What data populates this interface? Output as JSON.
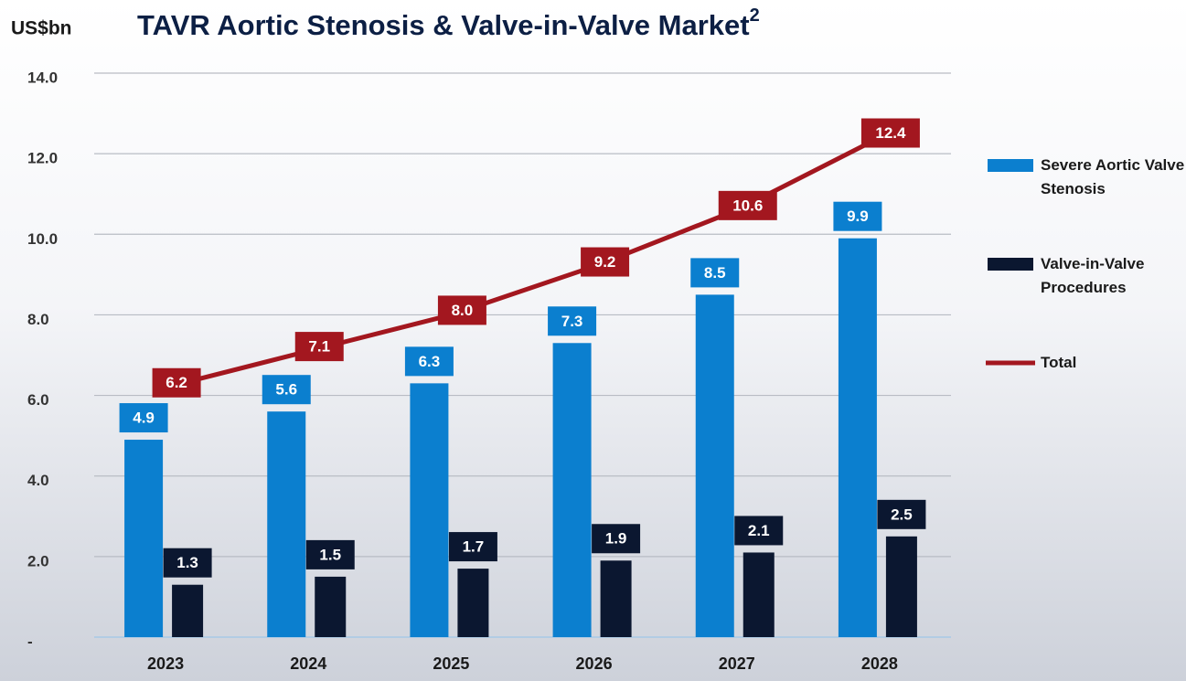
{
  "chart_data": {
    "type": "bar",
    "title": "TAVR Aortic Stenosis & Valve-in-Valve Market",
    "title_superscript": "2",
    "y_axis_label": "US$bn",
    "categories": [
      "2023",
      "2024",
      "2025",
      "2026",
      "2027",
      "2028"
    ],
    "series": [
      {
        "name": "Severe Aortic Valve Stenosis",
        "type": "bar",
        "color": "#0b7fcf",
        "values": [
          4.9,
          5.6,
          6.3,
          7.3,
          8.5,
          9.9
        ]
      },
      {
        "name": "Valve-in-Valve Procedures",
        "type": "bar",
        "color": "#0b1730",
        "values": [
          1.3,
          1.5,
          1.7,
          1.9,
          2.1,
          2.5
        ]
      },
      {
        "name": "Total",
        "type": "line",
        "color": "#a3171f",
        "values": [
          6.2,
          7.1,
          8.0,
          9.2,
          10.6,
          12.4
        ],
        "value_labels": [
          "6.2",
          "7.1",
          "8.0",
          "9.2",
          "10.6",
          "12.4"
        ]
      }
    ],
    "ylim": [
      0,
      14
    ],
    "yticks": [
      {
        "value": 0,
        "label": "-"
      },
      {
        "value": 2,
        "label": "2.0"
      },
      {
        "value": 4,
        "label": "4.0"
      },
      {
        "value": 6,
        "label": "6.0"
      },
      {
        "value": 8,
        "label": "8.0"
      },
      {
        "value": 10,
        "label": "10.0"
      },
      {
        "value": 12,
        "label": "12.0"
      },
      {
        "value": 14,
        "label": "14.0"
      }
    ],
    "grid": true,
    "legend": "right"
  }
}
